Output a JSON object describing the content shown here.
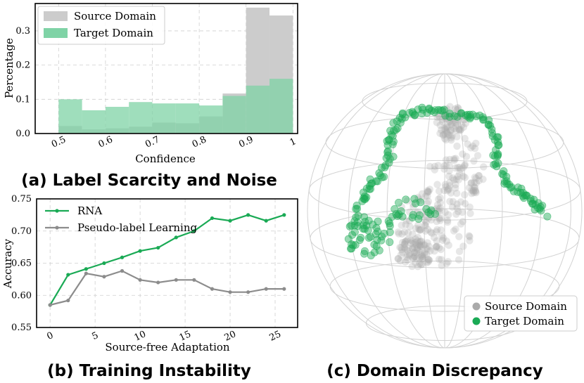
{
  "chart_data": [
    {
      "type": "bar",
      "caption": "(a) Label Scarcity and Noise",
      "xlabel": "Confidence",
      "ylabel": "Percentage",
      "xlim": [
        0.45,
        1.01
      ],
      "ylim": [
        0,
        0.38
      ],
      "xticks": [
        "0.5",
        "0.6",
        "0.7",
        "0.8",
        "0.9",
        "1"
      ],
      "yticks": [
        "0.0",
        "0.1",
        "0.2",
        "0.3"
      ],
      "bin_edges": [
        0.5,
        0.55,
        0.6,
        0.65,
        0.7,
        0.75,
        0.8,
        0.85,
        0.9,
        0.95,
        1.0
      ],
      "legend_position": "top-left",
      "grid": true,
      "series": [
        {
          "name": "Source Domain",
          "color": "#cccccc",
          "values": [
            0.022,
            0.012,
            0.015,
            0.02,
            0.032,
            0.03,
            0.05,
            0.117,
            0.368,
            0.345
          ]
        },
        {
          "name": "Target Domain",
          "color": "#7fd3a6",
          "values": [
            0.1,
            0.068,
            0.078,
            0.092,
            0.088,
            0.088,
            0.082,
            0.11,
            0.14,
            0.16
          ]
        }
      ]
    },
    {
      "type": "line",
      "caption": "(b) Training Instability",
      "xlabel": "Source-free Adaptation",
      "ylabel": "Accuracy",
      "xlim": [
        -1.5,
        27.5
      ],
      "ylim": [
        0.55,
        0.75
      ],
      "xticks": [
        "0",
        "5",
        "10",
        "15",
        "20",
        "25"
      ],
      "yticks": [
        "0.55",
        "0.60",
        "0.65",
        "0.70",
        "0.75"
      ],
      "legend_position": "top-left",
      "grid": true,
      "x": [
        0,
        2,
        4,
        6,
        8,
        10,
        12,
        14,
        16,
        18,
        20,
        22,
        24,
        26
      ],
      "series": [
        {
          "name": "RNA",
          "color": "#1aaa55",
          "values": [
            0.585,
            0.632,
            0.641,
            0.65,
            0.659,
            0.669,
            0.674,
            0.69,
            0.7,
            0.72,
            0.716,
            0.725,
            0.716,
            0.725
          ]
        },
        {
          "name": "Pseudo-label Learning",
          "color": "#8c8c8c",
          "values": [
            0.585,
            0.592,
            0.634,
            0.629,
            0.638,
            0.624,
            0.62,
            0.624,
            0.624,
            0.61,
            0.605,
            0.605,
            0.61,
            0.61
          ]
        }
      ]
    },
    {
      "type": "scatter",
      "caption": "(c) Domain Discrepancy",
      "legend_position": "bottom-right",
      "series": [
        {
          "name": "Source Domain",
          "color": "#aaaaaa"
        },
        {
          "name": "Target Domain",
          "color": "#1aaa55"
        }
      ]
    }
  ]
}
